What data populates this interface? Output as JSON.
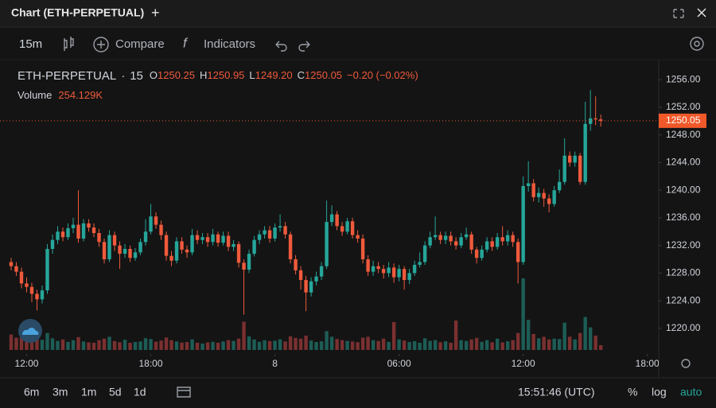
{
  "header": {
    "title": "Chart (ETH-PERPETUAL)",
    "add": "+"
  },
  "toolbar": {
    "interval": "15m",
    "compare": "Compare",
    "indicators": "Indicators"
  },
  "legend": {
    "symbol": "ETH-PERPETUAL",
    "separator": "·",
    "interval": "15",
    "ohlc": [
      [
        "O",
        "1250.25"
      ],
      [
        "H",
        "1250.95"
      ],
      [
        "L",
        "1249.20"
      ],
      [
        "C",
        "1250.05"
      ]
    ],
    "change": "−0.20 (−0.02%)",
    "volume_name": "Volume",
    "volume": "254.129K"
  },
  "bottom": {
    "ranges": [
      "6m",
      "3m",
      "1m",
      "5d",
      "1d"
    ],
    "time": "15:51:46 (UTC)",
    "options": [
      "%",
      "log",
      "auto"
    ]
  },
  "chart_data": {
    "type": "candlestick",
    "up_color": "#26a69a",
    "down_color": "#ef5a3c",
    "up_volume_color": "#1d5d56",
    "down_volume_color": "#7b3030",
    "last_price_color": "#f1592a",
    "xlim": [
      -2.15,
      125.2
    ],
    "xticks": [
      {
        "value": 3,
        "label": "12:00"
      },
      {
        "value": 27,
        "label": "18:00"
      },
      {
        "value": 51,
        "label": "8"
      },
      {
        "value": 75,
        "label": "06:00"
      },
      {
        "value": 99,
        "label": "12:00"
      },
      {
        "value": 123,
        "label": "18:00"
      }
    ],
    "ylim": [
      1216.3,
      1258.9
    ],
    "yticks": [
      {
        "value": 1220,
        "label": "1220.00"
      },
      {
        "value": 1224,
        "label": "1224.00"
      },
      {
        "value": 1228,
        "label": "1228.00"
      },
      {
        "value": 1232,
        "label": "1232.00"
      },
      {
        "value": 1236,
        "label": "1236.00"
      },
      {
        "value": 1240,
        "label": "1240.00"
      },
      {
        "value": 1244,
        "label": "1244.00"
      },
      {
        "value": 1248,
        "label": "1248.00"
      },
      {
        "value": 1252,
        "label": "1252.00"
      },
      {
        "value": 1256,
        "label": "1256.00"
      }
    ],
    "open": [
      1229.6,
      1229,
      1228.2,
      1226.5,
      1226,
      1225,
      1224.2,
      1225.5,
      1231.5,
      1232.8,
      1234,
      1233.2,
      1234.5,
      1235,
      1233,
      1235.2,
      1234.6,
      1233.8,
      1232.5,
      1230,
      1233.5,
      1232,
      1230.8,
      1231.5,
      1230.2,
      1231,
      1232.5,
      1234,
      1236.2,
      1235,
      1233.5,
      1230.5,
      1229.8,
      1232.6,
      1231.4,
      1231,
      1233.5,
      1232.8,
      1233.2,
      1232.5,
      1233.6,
      1232.4,
      1233.4,
      1231.8,
      1232.2,
      1229.5,
      1228.5,
      1230.8,
      1232.8,
      1233.6,
      1234.2,
      1233,
      1234.6,
      1234.8,
      1233.6,
      1230,
      1228.4,
      1227,
      1225.2,
      1226.8,
      1227.5,
      1229,
      1235.4,
      1236.5,
      1234.8,
      1234,
      1235.5,
      1233.5,
      1233,
      1230,
      1228.2,
      1229,
      1228.6,
      1228,
      1228.8,
      1227.4,
      1228.6,
      1227,
      1228,
      1229.2,
      1229.6,
      1232,
      1233.2,
      1233.5,
      1232.8,
      1233.4,
      1232.6,
      1232,
      1233.2,
      1233.6,
      1231.4,
      1230.2,
      1231.4,
      1232.6,
      1231.8,
      1233.2,
      1232.6,
      1233.5,
      1232.5,
      1229.6,
      1240.6,
      1241,
      1239,
      1239.6,
      1238.8,
      1238,
      1240,
      1241.2,
      1245,
      1244,
      1245,
      1241.2,
      1249.6,
      1250.4,
      1250.25
    ],
    "high": [
      1230.2,
      1229.6,
      1228.8,
      1227.4,
      1226.6,
      1225.6,
      1226.2,
      1232.2,
      1233.6,
      1234.8,
      1234.6,
      1235.2,
      1236,
      1240,
      1235.8,
      1235.8,
      1235.2,
      1234.4,
      1233,
      1234.2,
      1234,
      1232.6,
      1232.2,
      1232,
      1231.6,
      1233,
      1235.8,
      1238,
      1236.8,
      1235.6,
      1234,
      1231.2,
      1233.2,
      1233.2,
      1232,
      1234.4,
      1234.2,
      1233.8,
      1233.8,
      1234.4,
      1234,
      1234,
      1234,
      1232.8,
      1232.6,
      1230,
      1231.4,
      1233.4,
      1234.2,
      1234.8,
      1234.8,
      1235.2,
      1236.5,
      1235.4,
      1234,
      1230.6,
      1229,
      1227.6,
      1227.4,
      1228.2,
      1229.6,
      1238.5,
      1237.8,
      1237,
      1235.4,
      1236,
      1236,
      1234.2,
      1233.6,
      1230.6,
      1229.8,
      1229.6,
      1229.2,
      1229.6,
      1229.4,
      1229.2,
      1229,
      1228.6,
      1229.8,
      1231,
      1232.6,
      1234,
      1236.2,
      1234,
      1234,
      1234,
      1233.2,
      1233.8,
      1234.6,
      1234,
      1231.8,
      1232,
      1233.2,
      1233.2,
      1233.8,
      1234.8,
      1234.2,
      1234,
      1233,
      1242,
      1244.2,
      1241.6,
      1240.4,
      1240.2,
      1239.4,
      1240.6,
      1243,
      1247.5,
      1245.6,
      1245.6,
      1245.4,
      1252.8,
      1254.5,
      1253.6,
      1250.95
    ],
    "low": [
      1228.4,
      1227.6,
      1225.8,
      1225.2,
      1223.8,
      1222.6,
      1223.6,
      1225,
      1230.8,
      1232.2,
      1232.6,
      1232.8,
      1233.8,
      1232.4,
      1232.6,
      1234,
      1233.2,
      1231.8,
      1229.4,
      1229.6,
      1231.2,
      1228.6,
      1230.2,
      1229.6,
      1229.8,
      1230.6,
      1232,
      1233.6,
      1234.4,
      1232.8,
      1229.8,
      1229,
      1229.4,
      1230.8,
      1230.2,
      1230.6,
      1232.2,
      1232.2,
      1231.8,
      1232,
      1231.8,
      1232,
      1231.2,
      1231.2,
      1228.8,
      1222,
      1228,
      1230.4,
      1232.2,
      1233,
      1232.4,
      1232.6,
      1234,
      1233,
      1229.4,
      1227.8,
      1225.6,
      1222.5,
      1224.6,
      1226.2,
      1227,
      1228.6,
      1234.8,
      1234.2,
      1233.4,
      1233.6,
      1233,
      1232.4,
      1229.4,
      1227.6,
      1227.6,
      1228,
      1227.2,
      1227.4,
      1226.6,
      1226.8,
      1225.6,
      1226.4,
      1227.6,
      1228.8,
      1229.2,
      1231.6,
      1232.8,
      1232.2,
      1232.2,
      1232,
      1231.4,
      1231.6,
      1232.8,
      1230.8,
      1229.4,
      1229.8,
      1231,
      1231.2,
      1231.4,
      1232,
      1232,
      1231.8,
      1226.5,
      1229.2,
      1239.8,
      1238.4,
      1238.2,
      1237.6,
      1236.8,
      1237.6,
      1239.6,
      1240.8,
      1243.4,
      1243.4,
      1240.8,
      1240.8,
      1248.6,
      1249.4,
      1249.2
    ],
    "close": [
      1229,
      1228.2,
      1226.5,
      1226,
      1225,
      1224.2,
      1225.5,
      1231.5,
      1232.8,
      1234,
      1233.2,
      1234.5,
      1235,
      1233,
      1235.2,
      1234.6,
      1233.8,
      1232.5,
      1230,
      1233.5,
      1232,
      1230.8,
      1231.5,
      1230.2,
      1231,
      1232.5,
      1234,
      1236.2,
      1235,
      1233.5,
      1230.5,
      1229.8,
      1232.6,
      1231.4,
      1231,
      1233.5,
      1232.8,
      1233.2,
      1232.5,
      1233.6,
      1232.4,
      1233.4,
      1231.8,
      1232.2,
      1229.5,
      1228.5,
      1230.8,
      1232.8,
      1233.6,
      1234.2,
      1233,
      1234.6,
      1234.8,
      1233.6,
      1230,
      1228.4,
      1227,
      1225.2,
      1226.8,
      1227.5,
      1229,
      1235.4,
      1236.5,
      1234.8,
      1234,
      1235.5,
      1233.5,
      1233,
      1230,
      1228.2,
      1229,
      1228.6,
      1228,
      1228.8,
      1227.4,
      1228.6,
      1227,
      1228,
      1229.2,
      1229.6,
      1232,
      1233.2,
      1233.5,
      1232.8,
      1233.4,
      1232.6,
      1232,
      1233.2,
      1233.6,
      1231.4,
      1230.2,
      1231.4,
      1232.6,
      1231.8,
      1233.2,
      1232.6,
      1233.5,
      1232.5,
      1229.6,
      1240.6,
      1241,
      1239,
      1239.6,
      1238.8,
      1238,
      1240,
      1241.2,
      1245,
      1244,
      1245,
      1241.2,
      1249.6,
      1250.4,
      1250.25,
      1250.05
    ],
    "volume": [
      820000,
      650000,
      700000,
      560000,
      600000,
      780000,
      540000,
      900000,
      620000,
      480000,
      560000,
      430000,
      520000,
      680000,
      450000,
      400000,
      380000,
      520000,
      600000,
      700000,
      470000,
      410000,
      540000,
      380000,
      420000,
      450000,
      620000,
      580000,
      440000,
      500000,
      660000,
      520000,
      450000,
      390000,
      420000,
      560000,
      380000,
      340000,
      400000,
      430000,
      380000,
      450000,
      520000,
      480000,
      600000,
      1500000,
      720000,
      560000,
      430000,
      520000,
      470000,
      490000,
      560000,
      450000,
      720000,
      640000,
      600000,
      760000,
      500000,
      420000,
      460000,
      1000000,
      700000,
      580000,
      520000,
      480000,
      450000,
      410000,
      650000,
      700000,
      520000,
      480000,
      600000,
      430000,
      1480000,
      560000,
      500000,
      420000,
      470000,
      380000,
      620000,
      480000,
      520000,
      410000,
      460000,
      380000,
      1560000,
      520000,
      480000,
      560000,
      640000,
      430000,
      520000,
      410000,
      600000,
      400000,
      460000,
      520000,
      900000,
      3800000,
      1600000,
      850000,
      620000,
      700000,
      560000,
      600000,
      580000,
      1450000,
      700000,
      560000,
      900000,
      1750000,
      1200000,
      760000,
      254129
    ]
  }
}
